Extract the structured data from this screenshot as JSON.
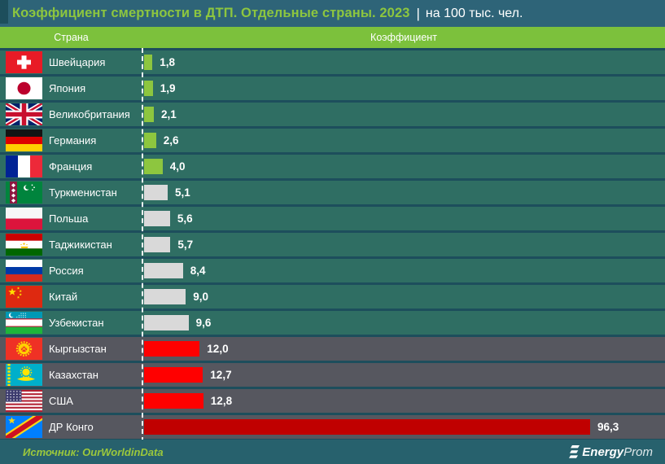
{
  "title": {
    "main": "Коэффициент смертности в ДТП. Отдельные страны. 2023",
    "separator": "|",
    "suffix": "на 100 тыс. чел."
  },
  "columns": {
    "country": "Страна",
    "value": "Коэффициент"
  },
  "rows": [
    {
      "name": "Швейцария",
      "flag": "switzerland",
      "value": 1.8,
      "label": "1,8",
      "bar": "green"
    },
    {
      "name": "Япония",
      "flag": "japan",
      "value": 1.9,
      "label": "1,9",
      "bar": "green"
    },
    {
      "name": "Великобритания",
      "flag": "uk",
      "value": 2.1,
      "label": "2,1",
      "bar": "green"
    },
    {
      "name": "Германия",
      "flag": "germany",
      "value": 2.6,
      "label": "2,6",
      "bar": "green"
    },
    {
      "name": "Франция",
      "flag": "france",
      "value": 4.0,
      "label": "4,0",
      "bar": "green"
    },
    {
      "name": "Туркменистан",
      "flag": "turkmenistan",
      "value": 5.1,
      "label": "5,1",
      "bar": "gray"
    },
    {
      "name": "Польша",
      "flag": "poland",
      "value": 5.6,
      "label": "5,6",
      "bar": "gray"
    },
    {
      "name": "Таджикистан",
      "flag": "tajikistan",
      "value": 5.7,
      "label": "5,7",
      "bar": "gray"
    },
    {
      "name": "Россия",
      "flag": "russia",
      "value": 8.4,
      "label": "8,4",
      "bar": "gray"
    },
    {
      "name": "Китай",
      "flag": "china",
      "value": 9.0,
      "label": "9,0",
      "bar": "gray"
    },
    {
      "name": "Узбекистан",
      "flag": "uzbekistan",
      "value": 9.6,
      "label": "9,6",
      "bar": "gray"
    },
    {
      "name": "Кыргызстан",
      "flag": "kyrgyzstan",
      "value": 12.0,
      "label": "12,0",
      "bar": "red"
    },
    {
      "name": "Казахстан",
      "flag": "kazakhstan",
      "value": 12.7,
      "label": "12,7",
      "bar": "red"
    },
    {
      "name": "США",
      "flag": "usa",
      "value": 12.8,
      "label": "12,8",
      "bar": "red"
    },
    {
      "name": "ДР Конго",
      "flag": "drcongo",
      "value": 96.3,
      "label": "96,3",
      "bar": "darkred"
    }
  ],
  "footer": {
    "source": "Источник: OurWorldinData",
    "logo_bold": "Energy",
    "logo_light": "Prom"
  },
  "colors": {
    "accent_green": "#8dc63f",
    "bar_green": "#8dc63f",
    "bar_gray": "#d9d9d9",
    "bar_red": "#ff0000",
    "bar_darkred": "#c00000",
    "row_teal": "#2f6e63",
    "row_dark": "#56575f",
    "header_band": "#7cc13c",
    "title_bg": "#2e6478",
    "page_bg": "#1d4e5c",
    "footer_bg": "#27616d",
    "source_text": "#9cc83c"
  },
  "chart_data": {
    "type": "bar",
    "orientation": "horizontal",
    "title": "Коэффициент смертности в ДТП. Отдельные страны. 2023",
    "unit": "на 100 тыс. чел.",
    "categories": [
      "Швейцария",
      "Япония",
      "Великобритания",
      "Германия",
      "Франция",
      "Туркменистан",
      "Польша",
      "Таджикистан",
      "Россия",
      "Китай",
      "Узбекистан",
      "Кыргызстан",
      "Казахстан",
      "США",
      "ДР Конго"
    ],
    "values": [
      1.8,
      1.9,
      2.1,
      2.6,
      4.0,
      5.1,
      5.6,
      5.7,
      8.4,
      9.0,
      9.6,
      12.0,
      12.7,
      12.8,
      96.3
    ],
    "value_labels": [
      "1,8",
      "1,9",
      "2,1",
      "2,6",
      "4,0",
      "5,1",
      "5,6",
      "5,7",
      "8,4",
      "9,0",
      "9,6",
      "12,0",
      "12,7",
      "12,8",
      "96,3"
    ],
    "bar_color_groups": [
      "green",
      "green",
      "green",
      "green",
      "green",
      "gray",
      "gray",
      "gray",
      "gray",
      "gray",
      "gray",
      "red",
      "red",
      "red",
      "darkred"
    ],
    "xlim": [
      0,
      100
    ],
    "grid": false,
    "legend": false,
    "source": "OurWorldinData"
  }
}
